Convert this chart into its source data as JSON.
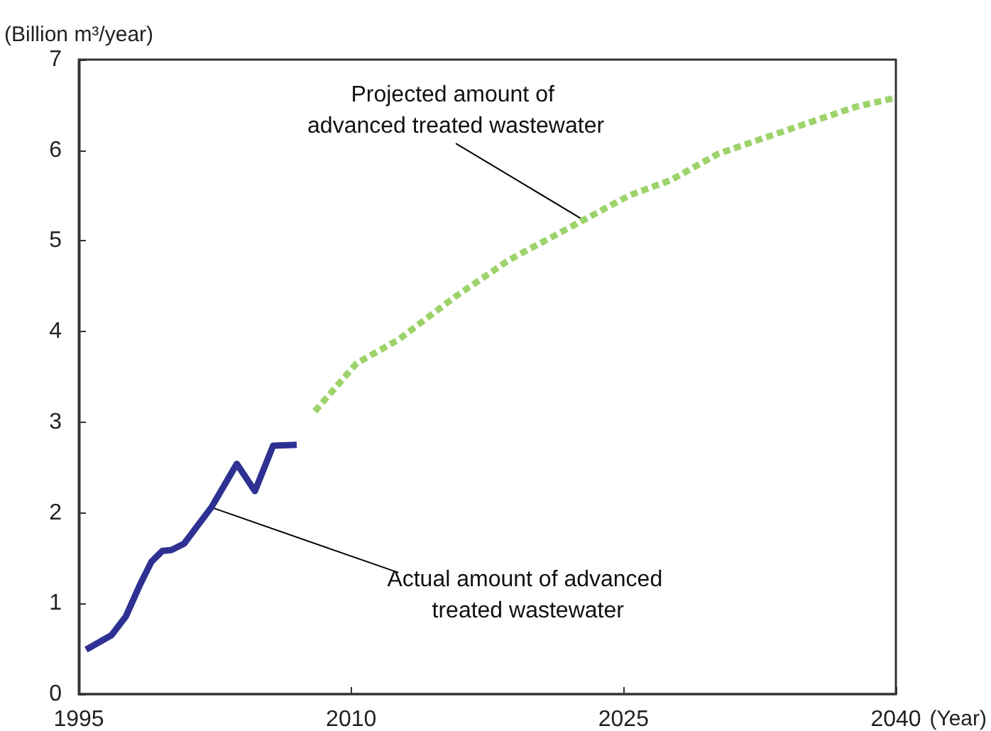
{
  "chart_data": {
    "type": "line",
    "ylabel": "(Billion m³/year)",
    "xlabel": "(Year)",
    "xlim": [
      1995,
      2040
    ],
    "xticks": [
      1995,
      2010,
      2025,
      2040
    ],
    "ylim": [
      0,
      7
    ],
    "yticks": [
      0,
      1,
      2,
      3,
      4,
      5,
      6,
      7
    ],
    "grid": false,
    "marker": "none",
    "series": [
      {
        "color": "#2e3192",
        "line_style": "solid",
        "x": [
          1995.4,
          1996.8,
          1997.6,
          1998.4,
          1999.0,
          1999.6,
          2000.1,
          2000.8,
          2002.3,
          2003.7,
          2004.7,
          2005.7,
          2007.0
        ],
        "values": [
          0.49,
          0.65,
          0.86,
          1.22,
          1.46,
          1.58,
          1.59,
          1.66,
          2.06,
          2.54,
          2.24,
          2.74,
          2.75
        ]
      },
      {
        "color": "#9dd36a",
        "line_style": "dashed",
        "x": [
          2008.0,
          2010.3,
          2012.6,
          2015.7,
          2018.7,
          2022.8,
          2025.3,
          2027.6,
          2030.2,
          2034.7,
          2037.8,
          2040.0
        ],
        "values": [
          3.12,
          3.65,
          3.91,
          4.38,
          4.79,
          5.23,
          5.5,
          5.67,
          5.96,
          6.27,
          6.48,
          6.58
        ]
      }
    ],
    "annotations": [
      {
        "text": "Projected amount of advanced treated wastewater",
        "x": 2022.8,
        "y": 5.23
      },
      {
        "text": "Actual amount of advanced treated wastewater",
        "x": 2002.3,
        "y": 2.06
      }
    ]
  }
}
